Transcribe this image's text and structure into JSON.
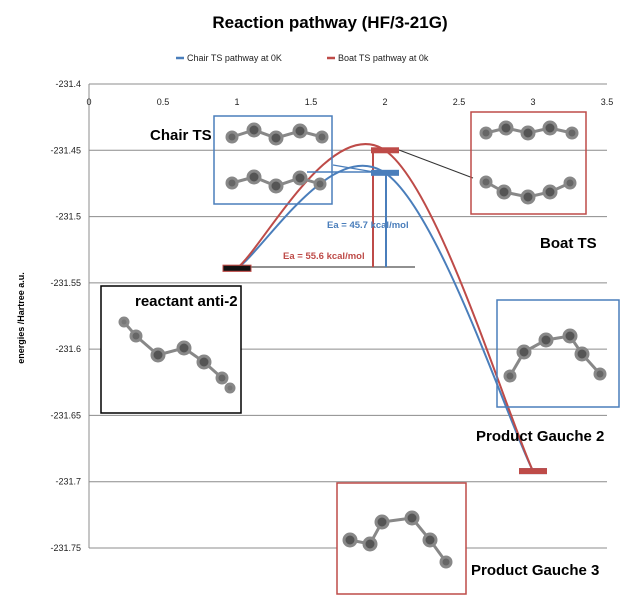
{
  "chart_data": {
    "type": "line",
    "title": "Reaction pathway (HF/3-21G)",
    "xlabel": "",
    "ylabel": "energies /Hartree a.u.",
    "xlim": [
      0,
      3.5
    ],
    "ylim": [
      -231.75,
      -231.4
    ],
    "x_ticks": [
      "0",
      "0.5",
      "1",
      "1.5",
      "2",
      "2.5",
      "3",
      "3.5"
    ],
    "x_tick_values": [
      0,
      0.5,
      1,
      1.5,
      2,
      2.5,
      3,
      3.5
    ],
    "y_ticks": [
      "-231.4",
      "-231.45",
      "-231.5",
      "-231.55",
      "-231.6",
      "-231.65",
      "-231.7",
      "-231.75"
    ],
    "y_tick_values": [
      -231.4,
      -231.45,
      -231.5,
      -231.55,
      -231.6,
      -231.65,
      -231.7,
      -231.75
    ],
    "grid": "horizontal",
    "legend_position": "top",
    "series": [
      {
        "name": "Chair TS pathway  at 0K",
        "color": "#4a7ebb",
        "points": [
          [
            1,
            -231.539
          ],
          [
            2,
            -231.467
          ],
          [
            3,
            -231.692
          ]
        ]
      },
      {
        "name": "Boat TS pathway  at 0k",
        "color": "#be4b48",
        "points": [
          [
            1,
            -231.539
          ],
          [
            2,
            -231.45
          ],
          [
            3,
            -231.692
          ]
        ]
      }
    ],
    "annotations": {
      "chair_ts": "Chair TS",
      "boat_ts": "Boat TS",
      "reactant": "reactant anti-2",
      "product_g2": "Product Gauche 2",
      "product_g3": "Product Gauche 3",
      "ea_chair": "Ea = 45.7 kcal/mol",
      "ea_boat": "Ea = 55.6 kcal/mol"
    }
  }
}
